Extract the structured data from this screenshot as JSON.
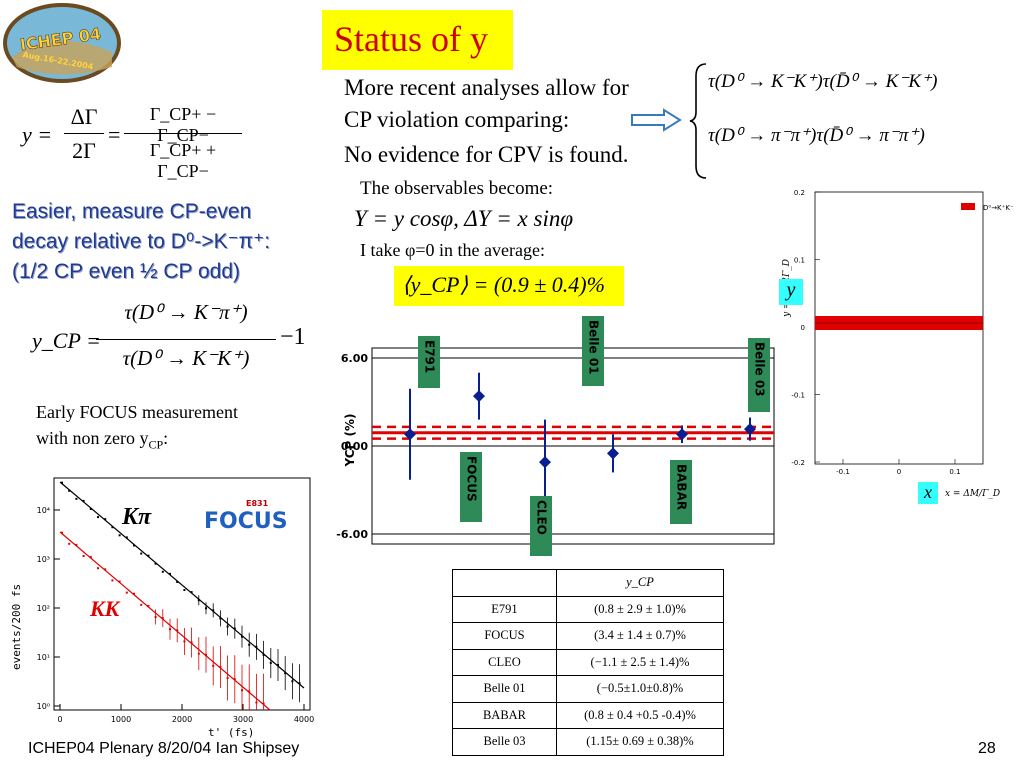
{
  "title": "Status of y",
  "logo": {
    "top": "ICHEP 04",
    "bottom": "Aug 16-22 2004 Beijing"
  },
  "intro": {
    "line1": "More recent analyses allow for",
    "line2": "CP violation comparing:",
    "line3": "No evidence for CPV is found."
  },
  "tau_eq": {
    "top": "τ(D⁰ → K⁻K⁺)τ(D̄⁰ → K⁻K⁺)",
    "bottom": "τ(D⁰ → π⁻π⁺)τ(D̄⁰ → π⁻π⁺)"
  },
  "y_def": {
    "lhs": "y =",
    "num1": "ΔΓ",
    "den1": "2Γ",
    "eq": "=",
    "num2": "Γ_CP+ − Γ_CP−",
    "den2": "Γ_CP+ + Γ_CP−"
  },
  "easier": {
    "line1": "Easier, measure CP-even",
    "line2": "decay relative to D⁰->K⁻π⁺:",
    "line3": "(1/2 CP even ½ CP odd)"
  },
  "ycp_def": {
    "lhs": "y_CP =",
    "num": "τ(D⁰ → K⁻π⁺)",
    "den": "τ(D⁰ → K⁻K⁺)",
    "tail": "−1"
  },
  "observables": {
    "intro": "The observables become:",
    "eq": "Y = y cosφ,   ΔY = x sinφ",
    "note": "I take φ=0 in the average:",
    "avg": "⟨y_CP⟩ = (0.9 ± 0.4)%"
  },
  "early": {
    "line1": "Early FOCUS measurement",
    "line2": "with non zero y",
    "sub": "CP",
    "tail": ":"
  },
  "table": {
    "header": "y_CP",
    "rows": [
      {
        "exp": "E791",
        "val": "(0.8 ± 2.9 ± 1.0)%"
      },
      {
        "exp": "FOCUS",
        "val": "(3.4 ± 1.4 ± 0.7)%"
      },
      {
        "exp": "CLEO",
        "val": "(−1.1 ± 2.5 ± 1.4)%"
      },
      {
        "exp": "Belle 01",
        "val": "(−0.5±1.0±0.8)%"
      },
      {
        "exp": "BABAR",
        "val": "(0.8 ± 0.4 +0.5 -0.4)%"
      },
      {
        "exp": "Belle 03",
        "val": "(1.15± 0.69 ± 0.38)%"
      }
    ]
  },
  "focus_plot": {
    "kpi_label": "Kπ",
    "kk_label": "KK",
    "logo": "FOCUS",
    "logo_tag": "E831",
    "ylabel": "events/200 fs",
    "xlabel": "t' (fs)",
    "xticks": [
      "0",
      "1000",
      "2000",
      "3000",
      "4000"
    ],
    "yticks": [
      "10⁰",
      "10¹",
      "10²",
      "10³",
      "10⁴"
    ]
  },
  "xy_plot": {
    "ylabel": "y = ΔΓ/2Γ_D",
    "xlabel": "x = ΔM/Γ_D",
    "legend": "D⁰→K⁺K⁻",
    "yticks": [
      "0.2",
      "0.1",
      "0",
      "-0.1",
      "-0.2"
    ],
    "xticks": [
      "-0.1",
      "0",
      "0.1"
    ],
    "badge_y": "y",
    "badge_x": "x"
  },
  "footer": {
    "left": "ICHEP04 Plenary 8/20/04 Ian Shipsey",
    "page": "28"
  },
  "chart_data": {
    "type": "scatter",
    "ylabel": "YCP (%)",
    "ylim": [
      -6.0,
      6.0
    ],
    "yticks": [
      "6.00",
      "0.00",
      "-6.00"
    ],
    "average": 0.9,
    "average_err": 0.4,
    "points": [
      {
        "label": "E791",
        "y": 0.8,
        "err": 3.1
      },
      {
        "label": "FOCUS",
        "y": 3.4,
        "err": 1.6
      },
      {
        "label": "CLEO",
        "y": -1.1,
        "err": 2.9
      },
      {
        "label": "Belle 01",
        "y": -0.5,
        "err": 1.3
      },
      {
        "label": "BABAR",
        "y": 0.8,
        "err": 0.6
      },
      {
        "label": "Belle 03",
        "y": 1.15,
        "err": 0.79
      }
    ],
    "colors": {
      "points": "#0a1f8f",
      "average": "#e00000",
      "labels_bg": "#2e8b57"
    }
  }
}
